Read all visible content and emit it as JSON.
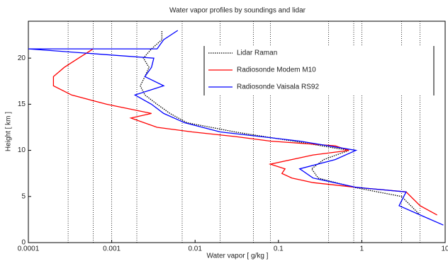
{
  "chart_data": {
    "type": "line",
    "title": "Water vapor profiles by soundings and lidar",
    "xlabel": "Water vapor [ g/kg ]",
    "ylabel": "Height [ km ]",
    "xscale": "log",
    "xlim": [
      0.0001,
      10
    ],
    "ylim": [
      0,
      24
    ],
    "xticks": [
      0.0001,
      0.001,
      0.01,
      0.1,
      1,
      10
    ],
    "yticks": [
      0,
      5,
      10,
      15,
      20
    ],
    "xgrid": [
      0.0003,
      0.0006,
      0.001,
      0.002,
      0.007,
      0.02,
      0.05,
      0.08,
      0.4,
      0.8,
      1,
      3,
      5
    ],
    "legend": "upper right",
    "series": [
      {
        "name": "Lidar Raman",
        "color": "#000000",
        "style": "dotted",
        "x": [
          5,
          3,
          0.8,
          0.3,
          0.25,
          0.35,
          0.7,
          0.15,
          0.03,
          0.008,
          0.005,
          0.0035,
          0.0025,
          0.0022,
          0.0025,
          0.0028,
          0.0024,
          0.003,
          0.004,
          0.004
        ],
        "y": [
          3,
          5,
          6,
          7,
          8,
          9,
          10,
          11,
          12,
          13,
          14,
          15,
          16,
          17,
          18,
          19,
          20,
          21,
          22,
          23
        ]
      },
      {
        "name": "Radiosonde Modem M10",
        "color": "#ff0000",
        "style": "solid",
        "x": [
          8,
          5,
          3.4,
          0.85,
          0.26,
          0.145,
          0.11,
          0.12,
          0.08,
          0.26,
          0.7,
          0.48,
          0.08,
          0.03,
          0.0092,
          0.0035,
          0.0017,
          0.003,
          0.00087,
          0.00033,
          0.0002,
          0.0002,
          0.00027,
          0.0004,
          0.0006
        ],
        "y": [
          3,
          4,
          5.5,
          6,
          6.5,
          7,
          7.5,
          8,
          8.5,
          9.5,
          10,
          10.5,
          11,
          11.5,
          12,
          12.5,
          13.5,
          14,
          15,
          16,
          17,
          18,
          19,
          20,
          21
        ]
      },
      {
        "name": "Radiosonde Vaisala RS92",
        "color": "#0000ff",
        "style": "solid",
        "x": [
          9.5,
          5,
          2.8,
          3.4,
          0.85,
          0.26,
          0.18,
          0.48,
          0.85,
          0.18,
          0.02,
          0.0075,
          0.0042,
          0.003,
          0.0019,
          0.0042,
          0.0025,
          0.003,
          0.0032,
          0.0001,
          0.0035,
          0.0042,
          0.0062
        ],
        "y": [
          1.9,
          3,
          4,
          5.5,
          6,
          7,
          8,
          9,
          10,
          11,
          12,
          13,
          14,
          15,
          16,
          17,
          18,
          19,
          20,
          21,
          21,
          22,
          23
        ]
      }
    ]
  }
}
